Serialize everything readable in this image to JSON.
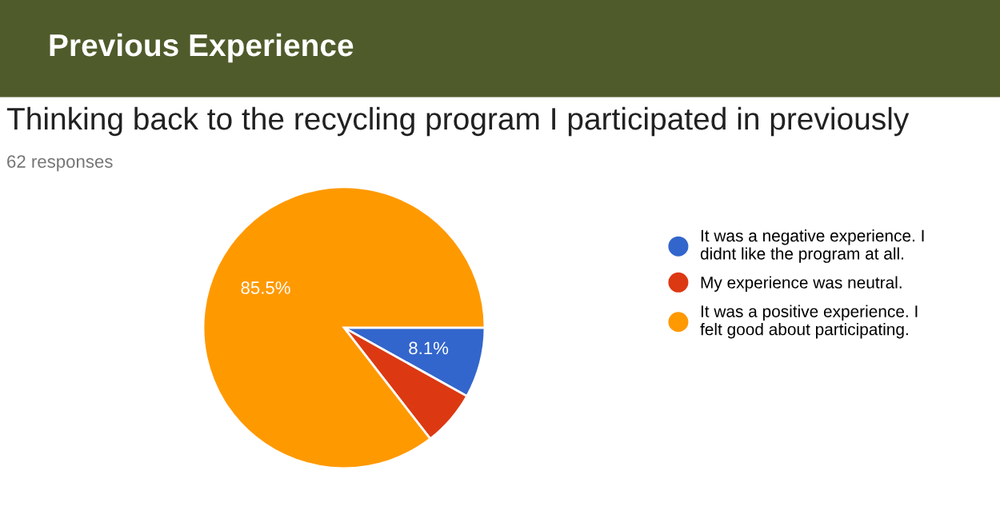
{
  "chart_data": {
    "type": "pie",
    "title": "Previous Experience",
    "subtitle": "Thinking back to the recycling program I participated in previously",
    "annotations": [
      "62 responses"
    ],
    "categories": [
      "It was a negative experience. I didnt like the program at all.",
      "My experience was neutral.",
      "It was a positive experience. I felt good about participating."
    ],
    "values": [
      8.1,
      6.4,
      85.5
    ],
    "colors": [
      "#3366cc",
      "#dc3912",
      "#ff9900"
    ],
    "value_labels": [
      "8.1%",
      null,
      "85.5%"
    ],
    "legend": "right"
  }
}
